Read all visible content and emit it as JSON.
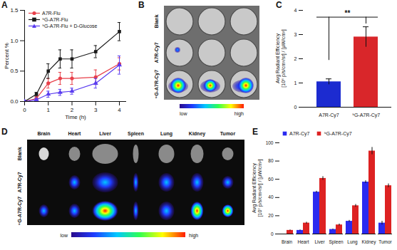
{
  "chart_data": [
    {
      "title": "A",
      "type": "line",
      "x": [
        0,
        0.5,
        1,
        1.5,
        2,
        3,
        4
      ],
      "xlabel": "Time (h)",
      "ylabel": "Percent %",
      "xlim": [
        0,
        4.3
      ],
      "xticks": [
        0,
        1,
        2,
        3,
        4
      ],
      "ylim": [
        0,
        1.5
      ],
      "yticks": [
        {
          "value": 0,
          "label": "0.0"
        },
        {
          "value": 0.5,
          "label": "0.5"
        },
        {
          "value": 1,
          "label": "1.0"
        },
        {
          "value": 1.5,
          "label": "1.5"
        }
      ],
      "legend": "top-left",
      "series": [
        {
          "name": "A7R-Flu",
          "color": "#e8404a",
          "marker": "circle",
          "values": [
            0,
            0.05,
            0.3,
            0.38,
            0.38,
            0.4,
            0.62
          ],
          "errors": [
            0,
            0.03,
            0.08,
            0.1,
            0.1,
            0.12,
            0.1
          ]
        },
        {
          "name": "⁹G-A7R-Flu",
          "color": "#1a1a1a",
          "marker": "square",
          "values": [
            0,
            0.12,
            0.5,
            0.7,
            0.7,
            0.82,
            1.15
          ],
          "errors": [
            0,
            0.03,
            0.12,
            0.15,
            0.15,
            0.1,
            0.15
          ]
        },
        {
          "name": "⁹G-A7R-Flu + D-Glucose",
          "color": "#5a3cf0",
          "marker": "triangle",
          "values": [
            0,
            0.03,
            0.12,
            0.15,
            0.17,
            0.3,
            0.6
          ],
          "errors": [
            0,
            0.02,
            0.05,
            0.05,
            0.05,
            0.08,
            0.15
          ]
        }
      ]
    },
    {
      "title": "C",
      "type": "bar",
      "categories": [
        "A7R-Cy7",
        "⁹G-A7R-Cy7"
      ],
      "values": [
        1.05,
        2.9
      ],
      "errors": [
        0.12,
        0.42
      ],
      "colors": [
        "#1c2bd0",
        "#d9262a"
      ],
      "ylabel": "Avg Radiant Efficiency\n[10⁸ p/s/cm²/sr] / [µW/cm²]",
      "ylim": [
        0,
        4
      ],
      "yticks": [
        0,
        1,
        2,
        3,
        4
      ],
      "annotation": "**"
    },
    {
      "title": "E",
      "type": "bar",
      "categories": [
        "Brain",
        "Heart",
        "Liver",
        "Spleen",
        "Lung",
        "Kidney",
        "Tumor"
      ],
      "ylabel": "Avg Radiant Efficiency\n[10⁷ p/s/cm²/sr] / [µW/cm²]",
      "ylim": [
        0,
        100
      ],
      "yticks": [
        0,
        20,
        40,
        60,
        80,
        100
      ],
      "legend": "top-left",
      "series": [
        {
          "name": "A7R-Cy7",
          "color": "#2a2af0",
          "values": [
            0,
            4,
            46,
            5,
            14,
            57,
            12
          ],
          "errors": [
            0,
            0.5,
            1,
            0.5,
            1,
            1.5,
            2
          ]
        },
        {
          "name": "⁹G-A7R-Cy7",
          "color": "#dd2222",
          "values": [
            4,
            12,
            61,
            10,
            31,
            91,
            53
          ],
          "errors": [
            0.5,
            1,
            2,
            1,
            1.5,
            4,
            2
          ]
        }
      ]
    }
  ],
  "images": [
    {
      "title": "B",
      "rows": [
        "Blank",
        "A7R-Cy7",
        "⁹G-A7R-Cy7"
      ],
      "colorbar": [
        "low",
        "high"
      ]
    },
    {
      "title": "D",
      "rows": [
        "Blank",
        "A7R-Cy7",
        "⁹G-A7R-Cy7"
      ],
      "columns": [
        "Brain",
        "Heart",
        "Liver",
        "Spleen",
        "Lung",
        "Kidney",
        "Tumor"
      ],
      "colorbar": [
        "low",
        "high"
      ]
    }
  ]
}
